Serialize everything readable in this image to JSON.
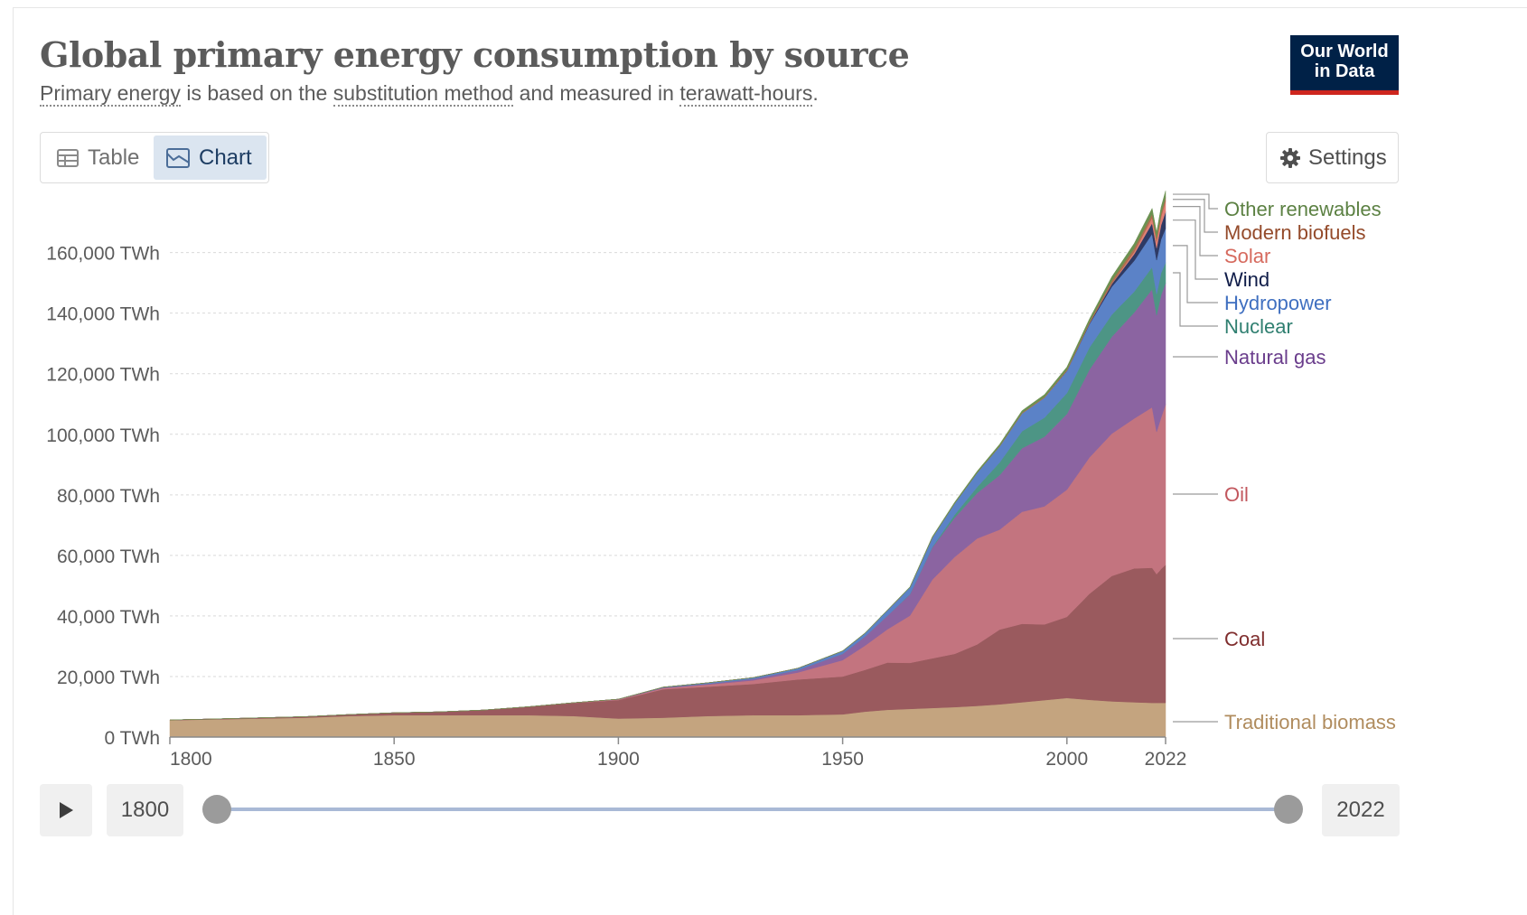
{
  "header": {
    "title": "Global primary energy consumption by source",
    "subtitle_parts": [
      "Primary energy",
      " is based on the ",
      "substitution method",
      " and measured in ",
      "terawatt-hours",
      "."
    ],
    "logo_line1": "Our World",
    "logo_line2": "in Data"
  },
  "tabs": {
    "table_label": "Table",
    "chart_label": "Chart",
    "active": "Chart"
  },
  "settings_label": "Settings",
  "timeline": {
    "start_year": "1800",
    "end_year": "2022"
  },
  "colors": {
    "Traditional biomass": "#c4a47f",
    "Coal": "#9a5a5e",
    "Oil": "#c3747f",
    "Natural gas": "#8b64a1",
    "Nuclear": "#4d9585",
    "Hydropower": "#5b82c7",
    "Wind": "#2e3a64",
    "Solar": "#e07f74",
    "Modern biofuels": "#b06e4f",
    "Other renewables": "#6c9151"
  },
  "label_colors": {
    "Traditional biomass": "#b08c5e",
    "Coal": "#7f2d2d",
    "Oil": "#c2575e",
    "Natural gas": "#6a3d8c",
    "Nuclear": "#2f7f70",
    "Hydropower": "#3f6fc0",
    "Wind": "#0f1c48",
    "Solar": "#d66a5e",
    "Modern biofuels": "#944a2a",
    "Other renewables": "#5c8143"
  },
  "chart_data": {
    "type": "area",
    "stacked": true,
    "title": "Global primary energy consumption by source",
    "unit": "TWh",
    "x": [
      1800,
      1810,
      1820,
      1830,
      1840,
      1850,
      1860,
      1870,
      1880,
      1890,
      1900,
      1910,
      1920,
      1930,
      1940,
      1950,
      1955,
      1960,
      1965,
      1970,
      1975,
      1980,
      1985,
      1990,
      1995,
      2000,
      2005,
      2010,
      2015,
      2019,
      2020,
      2021,
      2022
    ],
    "series": [
      {
        "name": "Traditional biomass",
        "values": [
          5556,
          5833,
          6111,
          6389,
          6944,
          7222,
          7222,
          7222,
          7222,
          6944,
          6111,
          6389,
          6944,
          7222,
          7222,
          7500,
          8400,
          9000,
          9300,
          9600,
          9900,
          10300,
          10800,
          11500,
          12200,
          12900,
          12300,
          11800,
          11500,
          11300,
          11300,
          11300,
          11300
        ]
      },
      {
        "name": "Coal",
        "values": [
          97,
          150,
          250,
          350,
          500,
          800,
          1100,
          1700,
          2800,
          4300,
          6100,
          9400,
          9700,
          10300,
          11800,
          12500,
          13800,
          15600,
          15200,
          16400,
          17600,
          20300,
          24700,
          25900,
          25000,
          26800,
          35000,
          41400,
          44200,
          44600,
          42500,
          44200,
          45600
        ]
      },
      {
        "name": "Oil",
        "values": [
          0,
          0,
          0,
          0,
          0,
          0,
          0,
          0,
          0,
          100,
          200,
          400,
          700,
          1200,
          2300,
          5400,
          8000,
          11000,
          15600,
          26000,
          32000,
          35000,
          33000,
          37000,
          39000,
          42000,
          45000,
          47000,
          49500,
          53000,
          47000,
          50000,
          52970
        ]
      },
      {
        "name": "Natural gas",
        "values": [
          0,
          0,
          0,
          0,
          0,
          0,
          0,
          0,
          0,
          0,
          100,
          200,
          300,
          500,
          800,
          2100,
          3000,
          4500,
          7000,
          10600,
          13000,
          15000,
          18000,
          21000,
          23000,
          25000,
          29000,
          32000,
          35000,
          39000,
          38500,
          40500,
          40100
        ]
      },
      {
        "name": "Nuclear",
        "values": [
          0,
          0,
          0,
          0,
          0,
          0,
          0,
          0,
          0,
          0,
          0,
          0,
          0,
          0,
          0,
          0,
          0,
          0,
          100,
          200,
          1000,
          2000,
          4200,
          5600,
          6300,
          6900,
          7300,
          7300,
          6900,
          7300,
          7000,
          7300,
          6700
        ]
      },
      {
        "name": "Hydropower",
        "values": [
          0,
          0,
          0,
          0,
          0,
          0,
          0,
          0,
          0,
          0,
          0,
          100,
          300,
          400,
          600,
          900,
          1100,
          1800,
          2200,
          3100,
          3700,
          4700,
          5300,
          5900,
          6600,
          7300,
          7700,
          9200,
          10200,
          11000,
          11200,
          11100,
          11300
        ]
      },
      {
        "name": "Wind",
        "values": [
          0,
          0,
          0,
          0,
          0,
          0,
          0,
          0,
          0,
          0,
          0,
          0,
          0,
          0,
          0,
          0,
          0,
          0,
          0,
          0,
          0,
          0,
          0,
          0,
          0,
          100,
          300,
          900,
          2200,
          3500,
          4000,
          4700,
          5500
        ]
      },
      {
        "name": "Solar",
        "values": [
          0,
          0,
          0,
          0,
          0,
          0,
          0,
          0,
          0,
          0,
          0,
          0,
          0,
          0,
          0,
          0,
          0,
          0,
          0,
          0,
          0,
          0,
          0,
          0,
          0,
          0,
          0,
          100,
          700,
          1800,
          2200,
          2700,
          3500
        ]
      },
      {
        "name": "Modern biofuels",
        "values": [
          0,
          0,
          0,
          0,
          0,
          0,
          0,
          0,
          0,
          0,
          0,
          0,
          0,
          0,
          0,
          0,
          0,
          0,
          0,
          0,
          0,
          0,
          100,
          200,
          200,
          300,
          400,
          1000,
          1200,
          1200,
          1100,
          1200,
          1200
        ]
      },
      {
        "name": "Other renewables",
        "values": [
          0,
          0,
          0,
          0,
          0,
          0,
          0,
          0,
          0,
          0,
          0,
          0,
          0,
          0,
          0,
          100,
          100,
          100,
          200,
          300,
          400,
          500,
          600,
          700,
          800,
          900,
          1000,
          1300,
          1600,
          1900,
          1900,
          2000,
          2200
        ]
      }
    ],
    "y_ticks": [
      0,
      20000,
      40000,
      60000,
      80000,
      100000,
      120000,
      140000,
      160000
    ],
    "y_tick_labels": [
      "0 TWh",
      "20,000 TWh",
      "40,000 TWh",
      "60,000 TWh",
      "80,000 TWh",
      "100,000 TWh",
      "120,000 TWh",
      "140,000 TWh",
      "160,000 TWh"
    ],
    "x_ticks": [
      1800,
      1850,
      1900,
      1950,
      2000,
      2022
    ],
    "x_tick_labels": [
      "1800",
      "1850",
      "1900",
      "1950",
      "2000",
      "2022"
    ],
    "xlim": [
      1800,
      2022
    ],
    "ylim": [
      0,
      176000
    ],
    "legend_placement": "right, inline labels",
    "grid": "horizontal dashed"
  }
}
